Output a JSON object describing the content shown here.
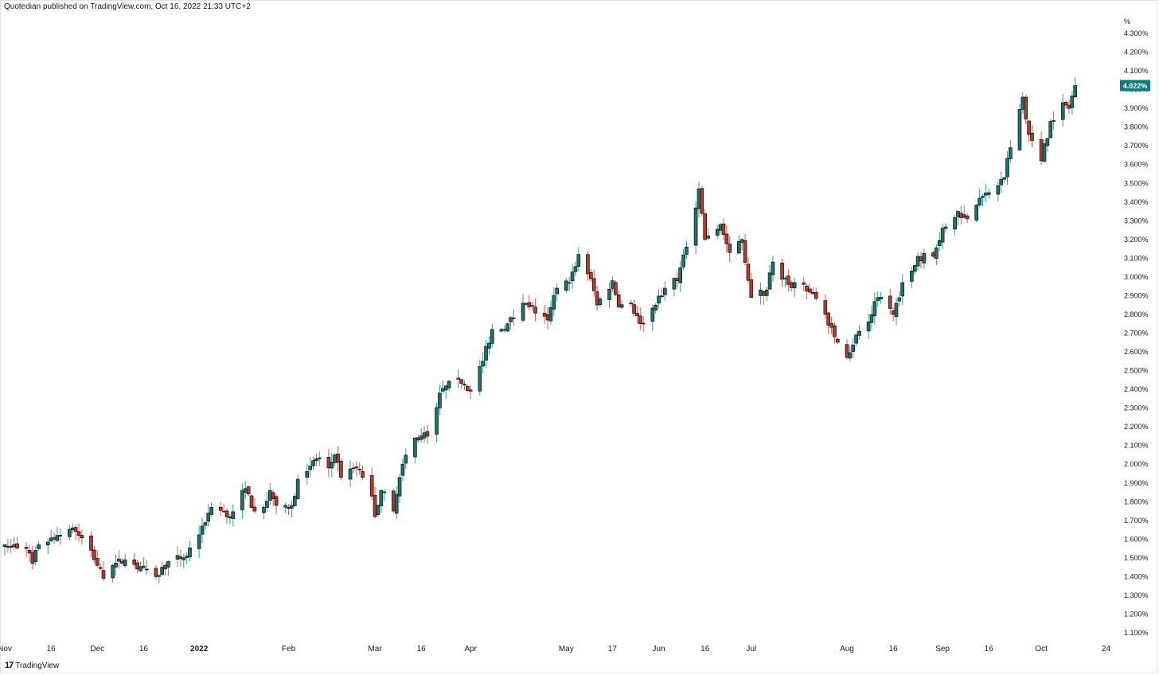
{
  "header": {
    "author": "Quotedian",
    "published_text": "published on TradingView.com, Oct 16, 2022 21:33 UTC+2"
  },
  "footer": {
    "brand": "TradingView",
    "logo_glyph": "17"
  },
  "colors": {
    "up": "#26a69a",
    "down": "#ef5350",
    "up_body": "#1f6f6a",
    "down_body": "#b03a2e",
    "wick_outline": "#000000",
    "label_bg": "#127a7a"
  },
  "chart_data": {
    "type": "candlestick",
    "y_unit_label": "%",
    "ylim": [
      1.1,
      4.3
    ],
    "y_ticks": [
      1.1,
      1.2,
      1.3,
      1.4,
      1.5,
      1.6,
      1.7,
      1.8,
      1.9,
      2.0,
      2.1,
      2.2,
      2.3,
      2.4,
      2.5,
      2.6,
      2.7,
      2.8,
      2.9,
      3.0,
      3.1,
      3.2,
      3.3,
      3.4,
      3.5,
      3.6,
      3.7,
      3.8,
      3.9,
      4.0,
      4.1,
      4.2,
      4.3
    ],
    "y_tick_labels": [
      "1.100%",
      "1.200%",
      "1.300%",
      "1.400%",
      "1.500%",
      "1.600%",
      "1.700%",
      "1.800%",
      "1.900%",
      "2.000%",
      "2.100%",
      "2.200%",
      "2.300%",
      "2.400%",
      "2.500%",
      "2.600%",
      "2.700%",
      "2.800%",
      "2.900%",
      "3.000%",
      "3.100%",
      "3.200%",
      "3.300%",
      "3.400%",
      "3.500%",
      "3.600%",
      "3.700%",
      "3.800%",
      "3.900%",
      "4.000%",
      "4.100%",
      "4.200%",
      "4.300%"
    ],
    "last_value": 4.022,
    "last_value_label": "4.022%",
    "x_start": "2021-11-01",
    "x_end": "2022-10-28",
    "x_ticks": [
      {
        "date": "2021-11-01",
        "label": "Nov",
        "bold": false
      },
      {
        "date": "2021-11-16",
        "label": "16",
        "bold": false
      },
      {
        "date": "2021-12-01",
        "label": "Dec",
        "bold": false
      },
      {
        "date": "2021-12-16",
        "label": "16",
        "bold": false
      },
      {
        "date": "2022-01-03",
        "label": "2022",
        "bold": true
      },
      {
        "date": "2022-02-01",
        "label": "Feb",
        "bold": false
      },
      {
        "date": "2022-03-01",
        "label": "Mar",
        "bold": false
      },
      {
        "date": "2022-03-16",
        "label": "16",
        "bold": false
      },
      {
        "date": "2022-04-01",
        "label": "Apr",
        "bold": false
      },
      {
        "date": "2022-05-02",
        "label": "May",
        "bold": false
      },
      {
        "date": "2022-05-17",
        "label": "17",
        "bold": false
      },
      {
        "date": "2022-06-01",
        "label": "Jun",
        "bold": false
      },
      {
        "date": "2022-06-16",
        "label": "16",
        "bold": false
      },
      {
        "date": "2022-07-01",
        "label": "Jul",
        "bold": false
      },
      {
        "date": "2022-08-01",
        "label": "Aug",
        "bold": false
      },
      {
        "date": "2022-08-16",
        "label": "16",
        "bold": false
      },
      {
        "date": "2022-09-01",
        "label": "Sep",
        "bold": false
      },
      {
        "date": "2022-09-16",
        "label": "16",
        "bold": false
      },
      {
        "date": "2022-10-03",
        "label": "Oct",
        "bold": false
      },
      {
        "date": "2022-10-24",
        "label": "24",
        "bold": false
      }
    ],
    "anchors": [
      {
        "date": "2021-11-01",
        "close": 1.57
      },
      {
        "date": "2021-11-08",
        "close": 1.55
      },
      {
        "date": "2021-11-10",
        "close": 1.47
      },
      {
        "date": "2021-11-12",
        "close": 1.57
      },
      {
        "date": "2021-11-18",
        "close": 1.62
      },
      {
        "date": "2021-11-23",
        "close": 1.66
      },
      {
        "date": "2021-11-25",
        "close": 1.62
      },
      {
        "date": "2021-11-29",
        "close": 1.54
      },
      {
        "date": "2021-12-03",
        "close": 1.39
      },
      {
        "date": "2021-12-06",
        "close": 1.46
      },
      {
        "date": "2021-12-10",
        "close": 1.49
      },
      {
        "date": "2021-12-14",
        "close": 1.44
      },
      {
        "date": "2021-12-20",
        "close": 1.4
      },
      {
        "date": "2021-12-24",
        "close": 1.48
      },
      {
        "date": "2021-12-30",
        "close": 1.51
      },
      {
        "date": "2022-01-04",
        "close": 1.67
      },
      {
        "date": "2022-01-07",
        "close": 1.77
      },
      {
        "date": "2022-01-13",
        "close": 1.72
      },
      {
        "date": "2022-01-18",
        "close": 1.87
      },
      {
        "date": "2022-01-21",
        "close": 1.75
      },
      {
        "date": "2022-01-24",
        "close": 1.77
      },
      {
        "date": "2022-01-26",
        "close": 1.86
      },
      {
        "date": "2022-01-28",
        "close": 1.78
      },
      {
        "date": "2022-02-02",
        "close": 1.78
      },
      {
        "date": "2022-02-04",
        "close": 1.92
      },
      {
        "date": "2022-02-10",
        "close": 2.03
      },
      {
        "date": "2022-02-14",
        "close": 1.98
      },
      {
        "date": "2022-02-16",
        "close": 2.05
      },
      {
        "date": "2022-02-18",
        "close": 1.93
      },
      {
        "date": "2022-02-23",
        "close": 1.98
      },
      {
        "date": "2022-02-24",
        "close": 1.97
      },
      {
        "date": "2022-02-28",
        "close": 1.83
      },
      {
        "date": "2022-03-01",
        "close": 1.72
      },
      {
        "date": "2022-03-03",
        "close": 1.86
      },
      {
        "date": "2022-03-07",
        "close": 1.75
      },
      {
        "date": "2022-03-10",
        "close": 2.0
      },
      {
        "date": "2022-03-14",
        "close": 2.14
      },
      {
        "date": "2022-03-18",
        "close": 2.15
      },
      {
        "date": "2022-03-22",
        "close": 2.38
      },
      {
        "date": "2022-03-28",
        "close": 2.46
      },
      {
        "date": "2022-04-01",
        "close": 2.39
      },
      {
        "date": "2022-04-05",
        "close": 2.55
      },
      {
        "date": "2022-04-08",
        "close": 2.72
      },
      {
        "date": "2022-04-12",
        "close": 2.72
      },
      {
        "date": "2022-04-18",
        "close": 2.86
      },
      {
        "date": "2022-04-20",
        "close": 2.84
      },
      {
        "date": "2022-04-26",
        "close": 2.77
      },
      {
        "date": "2022-04-29",
        "close": 2.94
      },
      {
        "date": "2022-05-03",
        "close": 2.97
      },
      {
        "date": "2022-05-06",
        "close": 3.12
      },
      {
        "date": "2022-05-10",
        "close": 2.99
      },
      {
        "date": "2022-05-12",
        "close": 2.85
      },
      {
        "date": "2022-05-17",
        "close": 2.98
      },
      {
        "date": "2022-05-19",
        "close": 2.84
      },
      {
        "date": "2022-05-23",
        "close": 2.86
      },
      {
        "date": "2022-05-26",
        "close": 2.75
      },
      {
        "date": "2022-05-31",
        "close": 2.85
      },
      {
        "date": "2022-06-03",
        "close": 2.94
      },
      {
        "date": "2022-06-07",
        "close": 2.98
      },
      {
        "date": "2022-06-10",
        "close": 3.16
      },
      {
        "date": "2022-06-14",
        "close": 3.47
      },
      {
        "date": "2022-06-16",
        "close": 3.2
      },
      {
        "date": "2022-06-21",
        "close": 3.28
      },
      {
        "date": "2022-06-24",
        "close": 3.13
      },
      {
        "date": "2022-06-28",
        "close": 3.2
      },
      {
        "date": "2022-07-01",
        "close": 2.89
      },
      {
        "date": "2022-07-06",
        "close": 2.93
      },
      {
        "date": "2022-07-08",
        "close": 3.08
      },
      {
        "date": "2022-07-13",
        "close": 2.96
      },
      {
        "date": "2022-07-18",
        "close": 2.96
      },
      {
        "date": "2022-07-21",
        "close": 2.91
      },
      {
        "date": "2022-07-25",
        "close": 2.8
      },
      {
        "date": "2022-07-28",
        "close": 2.68
      },
      {
        "date": "2022-08-01",
        "close": 2.57
      },
      {
        "date": "2022-08-04",
        "close": 2.69
      },
      {
        "date": "2022-08-08",
        "close": 2.76
      },
      {
        "date": "2022-08-11",
        "close": 2.89
      },
      {
        "date": "2022-08-16",
        "close": 2.8
      },
      {
        "date": "2022-08-19",
        "close": 2.97
      },
      {
        "date": "2022-08-24",
        "close": 3.11
      },
      {
        "date": "2022-08-29",
        "close": 3.11
      },
      {
        "date": "2022-09-01",
        "close": 3.26
      },
      {
        "date": "2022-09-06",
        "close": 3.35
      },
      {
        "date": "2022-09-09",
        "close": 3.31
      },
      {
        "date": "2022-09-13",
        "close": 3.42
      },
      {
        "date": "2022-09-16",
        "close": 3.45
      },
      {
        "date": "2022-09-21",
        "close": 3.53
      },
      {
        "date": "2022-09-23",
        "close": 3.69
      },
      {
        "date": "2022-09-27",
        "close": 3.96
      },
      {
        "date": "2022-09-29",
        "close": 3.76
      },
      {
        "date": "2022-10-03",
        "close": 3.62
      },
      {
        "date": "2022-10-06",
        "close": 3.83
      },
      {
        "date": "2022-10-10",
        "close": 3.93
      },
      {
        "date": "2022-10-12",
        "close": 3.9
      },
      {
        "date": "2022-10-14",
        "close": 4.022
      }
    ]
  }
}
